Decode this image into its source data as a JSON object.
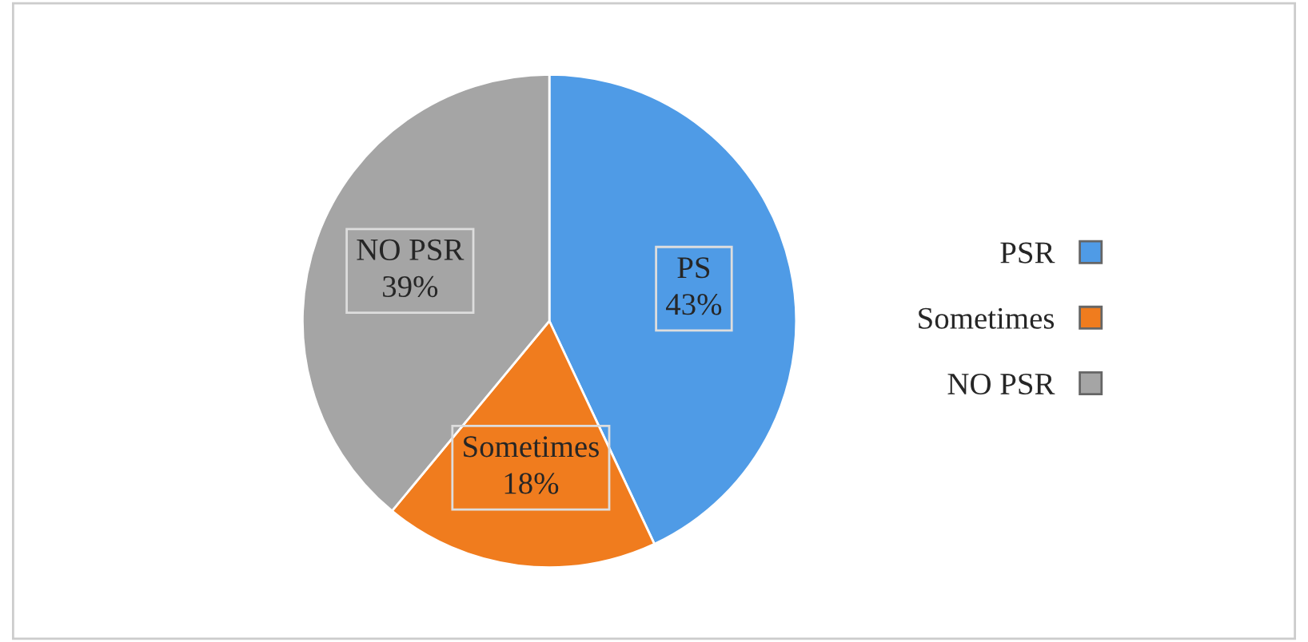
{
  "chart_data": {
    "type": "pie",
    "categories": [
      "PSR",
      "Sometimes",
      "NO PSR"
    ],
    "values": [
      43,
      18,
      39
    ],
    "colors": [
      "#4f9be6",
      "#f07c1e",
      "#a5a5a5"
    ],
    "value_labels": [
      "PS\n43%",
      "Sometimes\n18%",
      "NO PSR\n39%"
    ],
    "legend": "right"
  }
}
